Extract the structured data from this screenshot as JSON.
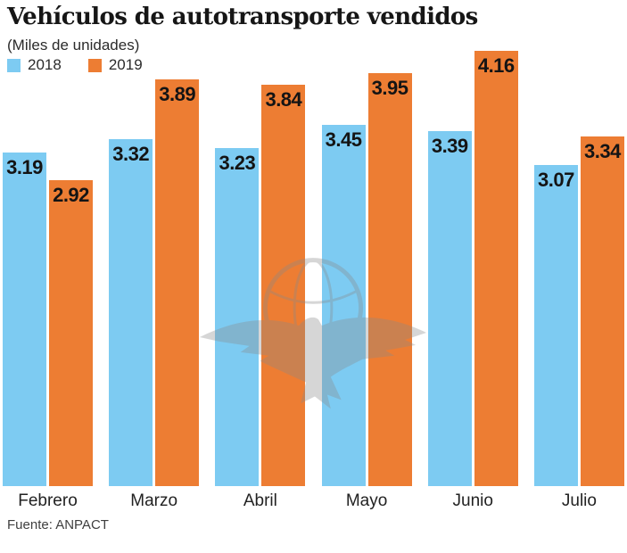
{
  "header": {
    "title": "Vehículos de autotransporte vendidos",
    "subtitle": "(Miles de unidades)"
  },
  "footer": {
    "source": "Fuente: ANPACT"
  },
  "watermark": {
    "description": "eagle-globe-logo"
  },
  "colors": {
    "series_2018": "#7DCBF2",
    "series_2019": "#ED7D33",
    "value_text": "#141414",
    "background": "#FFFFFF",
    "watermark_gray": "#8A8A8A"
  },
  "chart_data": {
    "type": "bar",
    "title": "Vehículos de autotransporte vendidos",
    "subtitle": "(Miles de unidades)",
    "categories": [
      "Febrero",
      "Marzo",
      "Abril",
      "Mayo",
      "Junio",
      "Julio"
    ],
    "series": [
      {
        "name": "2018",
        "color": "#7DCBF2",
        "values": [
          3.19,
          3.32,
          3.23,
          3.45,
          3.39,
          3.07
        ]
      },
      {
        "name": "2019",
        "color": "#ED7D33",
        "values": [
          2.92,
          3.89,
          3.84,
          3.95,
          4.16,
          3.34
        ]
      }
    ],
    "ylim": [
      0,
      4.16
    ],
    "grid": false,
    "axis_lines": false,
    "legend_position": "top-left",
    "value_labels": "inside-top",
    "xlabel": "",
    "ylabel": ""
  }
}
